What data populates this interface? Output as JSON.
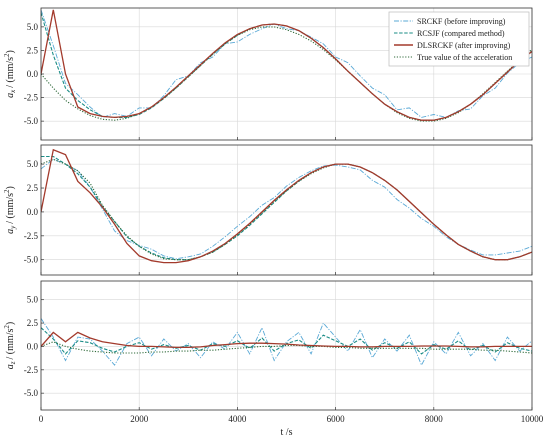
{
  "chart_data": [
    {
      "type": "line",
      "ylabel_symbol": "a",
      "ylabel_sub": "x",
      "ylabel_unit_pre": "/ (mm/s",
      "ylabel_unit_exp": "2",
      "ylabel_unit_post": ")",
      "xlim": [
        0,
        10000
      ],
      "ylim": [
        -7.0,
        7.0
      ],
      "yticks": [
        -5.0,
        -2.5,
        0.0,
        2.5,
        5.0
      ],
      "ytick_labels": [
        "-5.0",
        "-2.5",
        "0.0",
        "2.5",
        "5.0"
      ],
      "grid": true,
      "legend_position": "top-right",
      "x": [
        0,
        250,
        500,
        750,
        1000,
        1250,
        1500,
        1750,
        2000,
        2250,
        2500,
        2750,
        3000,
        3250,
        3500,
        3750,
        4000,
        4250,
        4500,
        4750,
        5000,
        5250,
        5500,
        5750,
        6000,
        6250,
        6500,
        6750,
        7000,
        7250,
        7500,
        7750,
        8000,
        8250,
        8500,
        8750,
        9000,
        9250,
        9500,
        9750,
        10000
      ],
      "series": [
        {
          "name": "SRCKF (before improving)",
          "values": [
            6.8,
            3.0,
            -1.0,
            -2.2,
            -3.5,
            -4.6,
            -4.2,
            -4.5,
            -3.6,
            -3.6,
            -2.3,
            -0.6,
            -0.2,
            1.2,
            1.8,
            3.2,
            3.4,
            4.2,
            4.8,
            5.3,
            4.8,
            4.6,
            3.9,
            3.2,
            1.8,
            1.2,
            -0.2,
            -1.5,
            -2.2,
            -3.8,
            -3.6,
            -4.6,
            -4.3,
            -4.6,
            -3.9,
            -3.7,
            -2.3,
            -1.5,
            0.1,
            1.2,
            1.8
          ]
        },
        {
          "name": "RCSJF (compared method)",
          "values": [
            6.5,
            2.0,
            -1.5,
            -2.8,
            -3.8,
            -4.5,
            -4.6,
            -4.6,
            -4.3,
            -3.6,
            -2.6,
            -1.5,
            -0.3,
            0.9,
            2.1,
            3.2,
            4.1,
            4.8,
            5.2,
            5.3,
            5.1,
            4.6,
            3.8,
            2.8,
            1.6,
            0.3,
            -0.9,
            -2.1,
            -3.2,
            -4.0,
            -4.6,
            -4.9,
            -4.9,
            -4.6,
            -4.0,
            -3.2,
            -2.2,
            -1.0,
            0.2,
            1.4,
            2.4
          ]
        },
        {
          "name": "DLSRCKF (after improving)",
          "values": [
            0.0,
            6.8,
            0.0,
            -3.5,
            -4.2,
            -4.5,
            -4.6,
            -4.5,
            -4.2,
            -3.5,
            -2.5,
            -1.4,
            -0.2,
            1.0,
            2.2,
            3.3,
            4.2,
            4.8,
            5.2,
            5.3,
            5.1,
            4.6,
            3.8,
            2.8,
            1.6,
            0.3,
            -0.9,
            -2.1,
            -3.2,
            -4.0,
            -4.6,
            -4.9,
            -4.9,
            -4.6,
            -4.0,
            -3.2,
            -2.2,
            -1.0,
            0.2,
            1.4,
            2.4
          ]
        },
        {
          "name": "True value of the acceleration",
          "values": [
            0.0,
            -1.5,
            -2.8,
            -3.7,
            -4.4,
            -4.8,
            -4.9,
            -4.7,
            -4.2,
            -3.5,
            -2.6,
            -1.5,
            -0.3,
            0.9,
            2.1,
            3.2,
            4.1,
            4.7,
            5.0,
            5.0,
            4.7,
            4.2,
            3.5,
            2.6,
            1.5,
            0.3,
            -0.9,
            -2.1,
            -3.2,
            -4.1,
            -4.7,
            -5.0,
            -5.0,
            -4.7,
            -4.1,
            -3.2,
            -2.1,
            -0.9,
            0.3,
            1.5,
            2.6
          ]
        }
      ]
    },
    {
      "type": "line",
      "ylabel_symbol": "a",
      "ylabel_sub": "y",
      "ylabel_unit_pre": "/ (mm/s",
      "ylabel_unit_exp": "2",
      "ylabel_unit_post": ")",
      "xlim": [
        0,
        10000
      ],
      "ylim": [
        -6.6,
        7.0
      ],
      "yticks": [
        -5.0,
        -2.5,
        0.0,
        2.5,
        5.0
      ],
      "ytick_labels": [
        "-5.0",
        "-2.5",
        "0.0",
        "2.5",
        "5.0"
      ],
      "grid": true,
      "x": [
        0,
        250,
        500,
        750,
        1000,
        1250,
        1500,
        1750,
        2000,
        2250,
        2500,
        2750,
        3000,
        3250,
        3500,
        3750,
        4000,
        4250,
        4500,
        4750,
        5000,
        5250,
        5500,
        5750,
        6000,
        6250,
        6500,
        6750,
        7000,
        7250,
        7500,
        7750,
        8000,
        8250,
        8500,
        8750,
        9000,
        9250,
        9500,
        9750,
        10000
      ],
      "series": [
        {
          "name": "SRCKF (before improving)",
          "values": [
            4.5,
            5.5,
            5.0,
            4.3,
            2.6,
            0.3,
            -2.0,
            -3.0,
            -3.5,
            -3.9,
            -4.6,
            -4.9,
            -4.7,
            -4.4,
            -3.6,
            -2.6,
            -1.5,
            -0.5,
            0.7,
            1.5,
            2.7,
            3.6,
            4.3,
            4.8,
            4.9,
            4.7,
            4.4,
            3.3,
            2.6,
            1.3,
            0.4,
            -0.7,
            -1.5,
            -2.6,
            -3.4,
            -4.0,
            -4.5,
            -4.5,
            -4.3,
            -4.1,
            -3.6
          ]
        },
        {
          "name": "RCSJF (compared method)",
          "values": [
            5.8,
            5.8,
            5.0,
            4.0,
            2.6,
            0.6,
            -1.0,
            -2.6,
            -3.6,
            -4.3,
            -4.8,
            -5.0,
            -5.0,
            -4.7,
            -4.2,
            -3.4,
            -2.5,
            -1.4,
            -0.2,
            1.0,
            2.2,
            3.2,
            4.1,
            4.7,
            5.0,
            5.0,
            4.7,
            4.1,
            3.3,
            2.3,
            1.1,
            -0.1,
            -1.3,
            -2.4,
            -3.4,
            -4.1,
            -4.7,
            -5.0,
            -5.0,
            -4.7,
            -4.2
          ]
        },
        {
          "name": "DLSRCKF (after improving)",
          "values": [
            0.0,
            6.5,
            6.0,
            3.2,
            2.0,
            0.5,
            -1.3,
            -3.3,
            -4.6,
            -5.1,
            -5.3,
            -5.3,
            -5.1,
            -4.7,
            -4.1,
            -3.3,
            -2.3,
            -1.2,
            0.0,
            1.2,
            2.3,
            3.3,
            4.1,
            4.7,
            5.0,
            5.0,
            4.7,
            4.1,
            3.3,
            2.3,
            1.1,
            -0.1,
            -1.3,
            -2.4,
            -3.4,
            -4.1,
            -4.7,
            -5.0,
            -5.0,
            -4.7,
            -4.2
          ]
        },
        {
          "name": "True value of the acceleration",
          "values": [
            5.0,
            5.5,
            5.0,
            4.3,
            3.0,
            0.7,
            -1.0,
            -2.5,
            -3.6,
            -4.4,
            -4.9,
            -5.0,
            -5.0,
            -4.7,
            -4.2,
            -3.4,
            -2.4,
            -1.3,
            -0.1,
            1.1,
            2.2,
            3.2,
            4.0,
            4.6,
            5.0,
            5.0,
            4.7,
            4.1,
            3.3,
            2.3,
            1.1,
            -0.1,
            -1.3,
            -2.4,
            -3.4,
            -4.1,
            -4.7,
            -5.0,
            -5.0,
            -4.7,
            -4.2
          ]
        }
      ]
    },
    {
      "type": "line",
      "ylabel_symbol": "a",
      "ylabel_sub": "z",
      "ylabel_unit_pre": "/ (mm/s",
      "ylabel_unit_exp": "2",
      "ylabel_unit_post": ")",
      "xlim": [
        0,
        10000
      ],
      "ylim": [
        -6.8,
        7.0
      ],
      "xticks": [
        0,
        2000,
        4000,
        6000,
        8000,
        10000
      ],
      "xtick_labels": [
        "0",
        "2000",
        "4000",
        "6000",
        "8000",
        "10000"
      ],
      "xlabel": "t /s",
      "yticks": [
        -5.0,
        -2.5,
        0.0,
        2.5,
        5.0
      ],
      "ytick_labels": [
        "-5.0",
        "-2.5",
        "0.0",
        "2.5",
        "5.0"
      ],
      "grid": true,
      "x": [
        0,
        250,
        500,
        750,
        1000,
        1250,
        1500,
        1750,
        2000,
        2250,
        2500,
        2750,
        3000,
        3250,
        3500,
        3750,
        4000,
        4250,
        4500,
        4750,
        5000,
        5250,
        5500,
        5750,
        6000,
        6250,
        6500,
        6750,
        7000,
        7250,
        7500,
        7750,
        8000,
        8250,
        8500,
        8750,
        9000,
        9250,
        9500,
        9750,
        10000
      ],
      "series": [
        {
          "name": "SRCKF (before improving)",
          "values": [
            3.0,
            1.0,
            -1.5,
            1.0,
            0.8,
            -0.5,
            -2.0,
            0.3,
            1.0,
            -1.0,
            0.8,
            -0.5,
            0.3,
            -1.2,
            0.5,
            -0.3,
            1.5,
            -0.8,
            2.0,
            -1.5,
            0.5,
            1.5,
            -0.8,
            2.5,
            1.0,
            -0.5,
            1.8,
            -1.2,
            0.8,
            -0.5,
            1.2,
            -2.0,
            0.5,
            -0.8,
            1.5,
            -1.0,
            0.3,
            -1.5,
            1.0,
            -0.5,
            0.6
          ]
        },
        {
          "name": "RCSJF (compared method)",
          "values": [
            2.0,
            0.8,
            -0.8,
            0.6,
            0.4,
            -0.2,
            -0.6,
            0.0,
            0.4,
            -0.3,
            0.2,
            -0.2,
            0.1,
            -0.4,
            0.3,
            0.0,
            0.6,
            -0.2,
            0.9,
            -0.5,
            0.3,
            0.7,
            -0.2,
            1.2,
            0.6,
            0.0,
            0.8,
            -0.4,
            0.4,
            -0.2,
            0.5,
            -0.8,
            0.2,
            -0.3,
            0.6,
            -0.4,
            0.1,
            -0.6,
            0.4,
            -0.2,
            -0.5
          ]
        },
        {
          "name": "DLSRCKF (after improving)",
          "values": [
            0.0,
            1.5,
            0.5,
            1.5,
            0.9,
            0.5,
            0.3,
            0.1,
            0.0,
            0.0,
            -0.05,
            -0.1,
            -0.1,
            -0.05,
            0.1,
            0.2,
            0.3,
            0.35,
            0.35,
            0.3,
            0.25,
            0.15,
            0.1,
            0.05,
            0.0,
            0.0,
            -0.05,
            -0.05,
            0.0,
            0.0,
            0.0,
            0.05,
            0.05,
            0.05,
            0.0,
            -0.05,
            -0.05,
            0.0,
            0.0,
            0.0,
            0.0
          ]
        },
        {
          "name": "True value of the acceleration",
          "values": [
            0.0,
            0.5,
            0.0,
            -0.3,
            -0.5,
            -0.6,
            -0.7,
            -0.7,
            -0.7,
            -0.6,
            -0.6,
            -0.5,
            -0.5,
            -0.4,
            -0.4,
            -0.3,
            -0.2,
            -0.1,
            0.0,
            0.0,
            0.1,
            0.1,
            0.0,
            0.0,
            -0.1,
            -0.1,
            -0.2,
            -0.2,
            -0.2,
            -0.2,
            -0.2,
            -0.2,
            -0.3,
            -0.3,
            -0.3,
            -0.3,
            -0.4,
            -0.4,
            -0.5,
            -0.6,
            -0.7
          ]
        }
      ]
    }
  ],
  "legend": {
    "position": "top-right",
    "entries": [
      "SRCKF (before improving)",
      "RCSJF (compared method)",
      "DLSRCKF (after improving)",
      "True value of the acceleration"
    ]
  },
  "colors": {
    "SRCKF (before improving)": "#5aa9d6",
    "RCSJF (compared method)": "#1a8c86",
    "DLSRCKF (after improving)": "#a33a2c",
    "True value of the acceleration": "#2f6a3a"
  },
  "dashes": {
    "SRCKF (before improving)": "5,1.5,1.2,1.5",
    "RCSJF (compared method)": "3.5,1.6",
    "DLSRCKF (after improving)": "",
    "True value of the acceleration": "1.2,1.6"
  }
}
